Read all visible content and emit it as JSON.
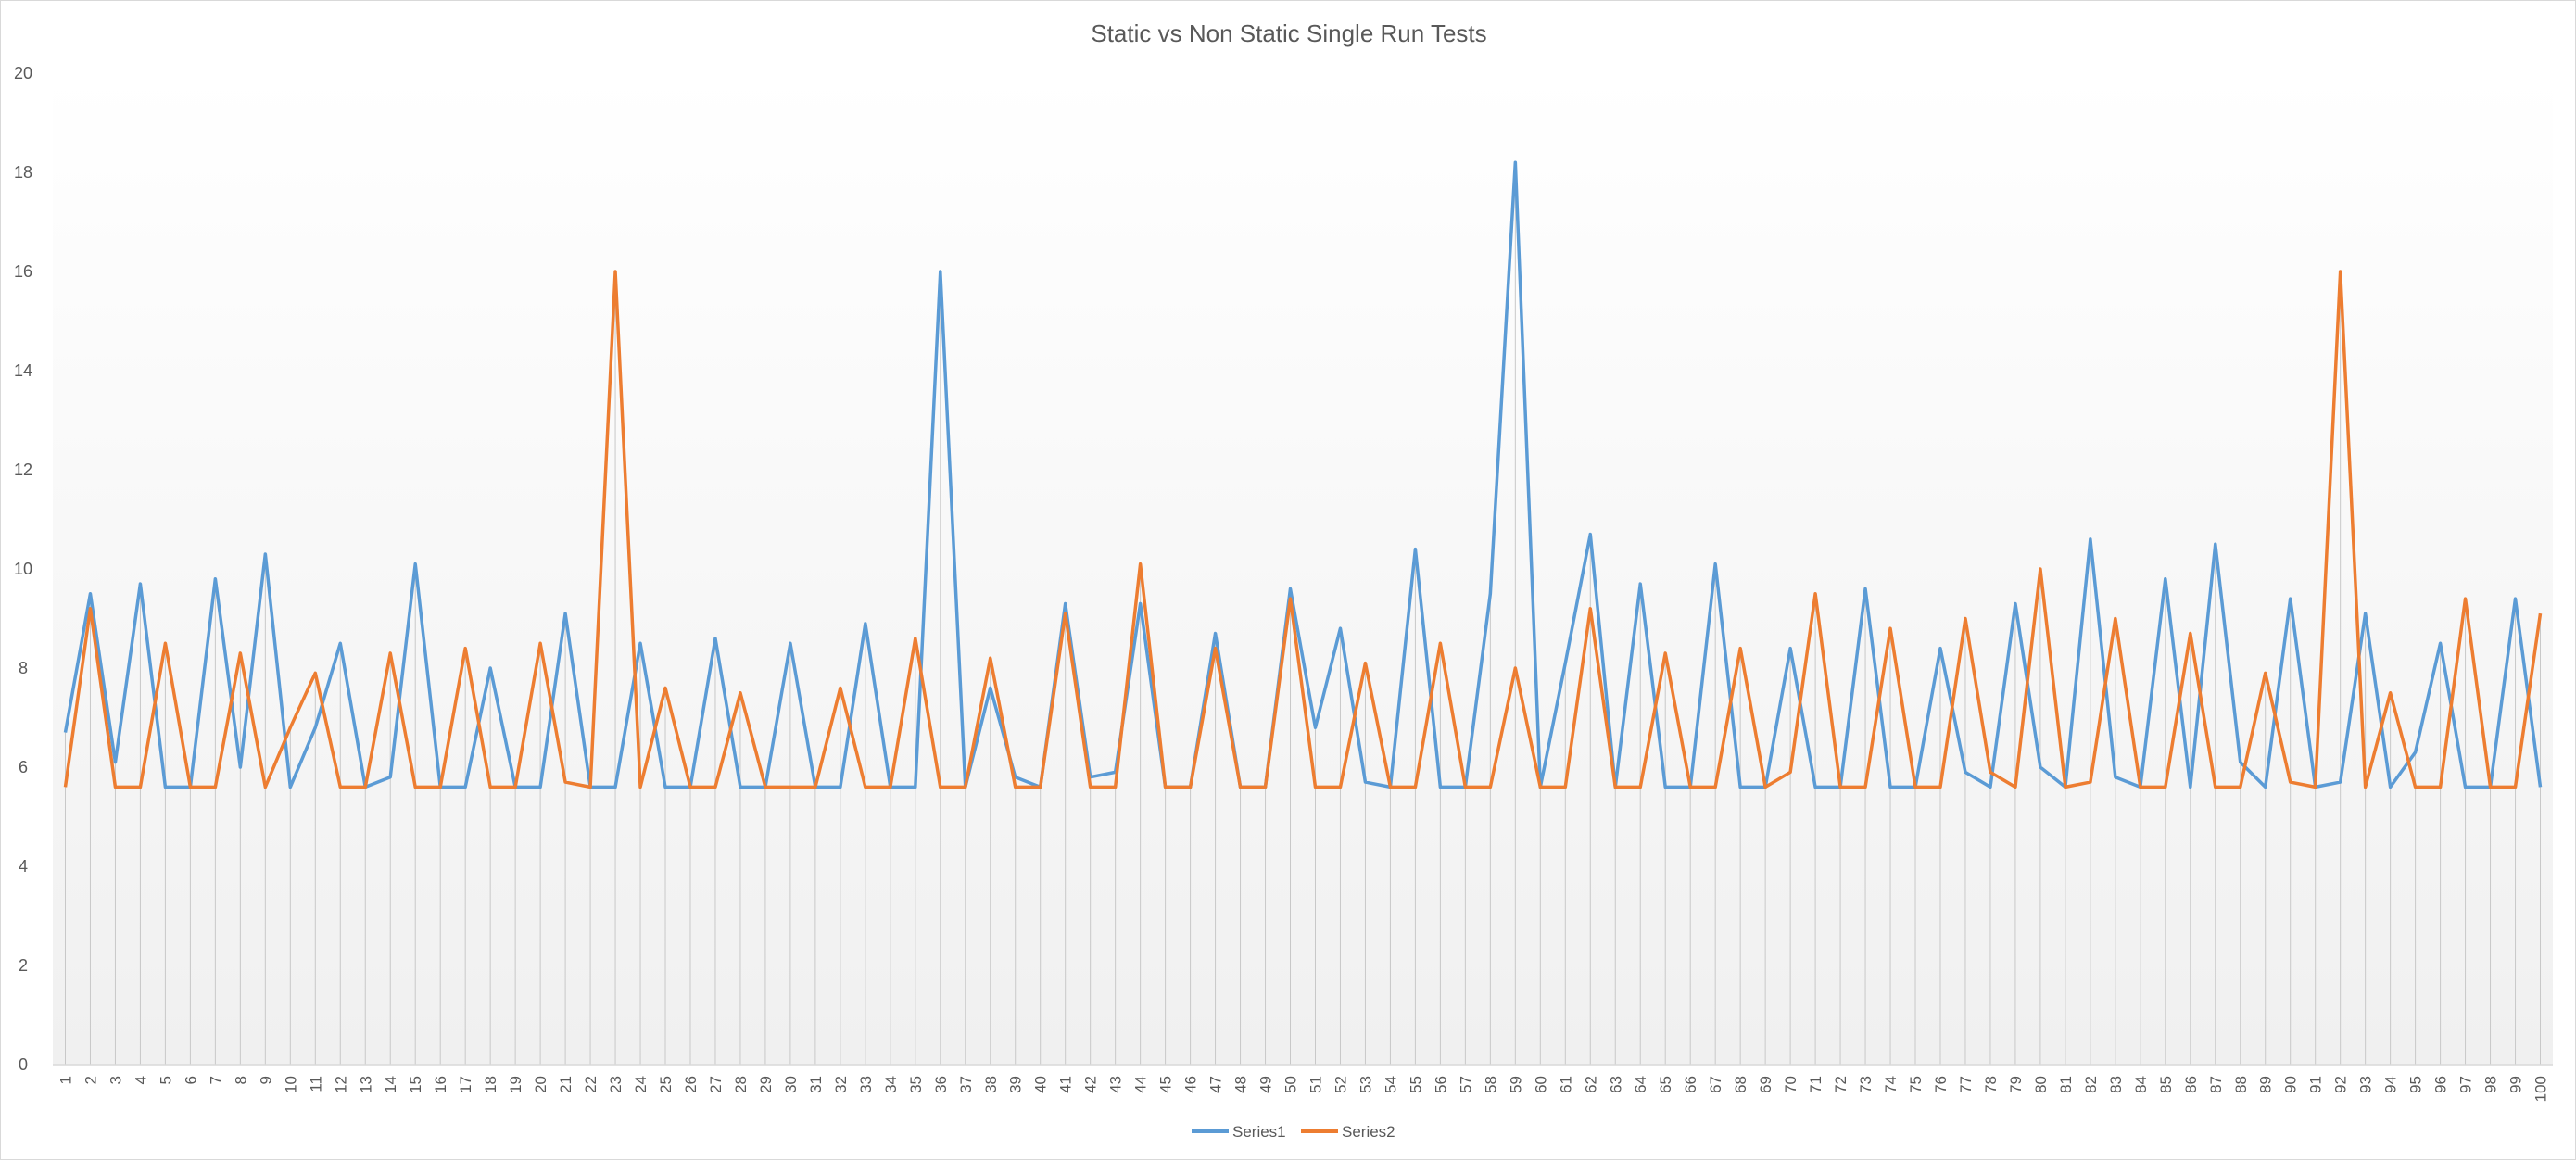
{
  "chart_data": {
    "type": "line",
    "title": "Static vs Non Static Single Run Tests",
    "xlabel": "",
    "ylabel": "",
    "ylim": [
      0,
      20
    ],
    "yticks": [
      0,
      2,
      4,
      6,
      8,
      10,
      12,
      14,
      16,
      18,
      20
    ],
    "grid": false,
    "drop_lines": true,
    "legend_position": "bottom",
    "x": [
      1,
      2,
      3,
      4,
      5,
      6,
      7,
      8,
      9,
      10,
      11,
      12,
      13,
      14,
      15,
      16,
      17,
      18,
      19,
      20,
      21,
      22,
      23,
      24,
      25,
      26,
      27,
      28,
      29,
      30,
      31,
      32,
      33,
      34,
      35,
      36,
      37,
      38,
      39,
      40,
      41,
      42,
      43,
      44,
      45,
      46,
      47,
      48,
      49,
      50,
      51,
      52,
      53,
      54,
      55,
      56,
      57,
      58,
      59,
      60,
      61,
      62,
      63,
      64,
      65,
      66,
      67,
      68,
      69,
      70,
      71,
      72,
      73,
      74,
      75,
      76,
      77,
      78,
      79,
      80,
      81,
      82,
      83,
      84,
      85,
      86,
      87,
      88,
      89,
      90,
      91,
      92,
      93,
      94,
      95,
      96,
      97,
      98,
      99,
      100
    ],
    "series": [
      {
        "name": "Series1",
        "color": "#5b9bd5",
        "values": [
          6.7,
          9.5,
          6.1,
          9.7,
          5.6,
          5.6,
          9.8,
          6.0,
          10.3,
          5.6,
          6.8,
          8.5,
          5.6,
          5.8,
          10.1,
          5.6,
          5.6,
          8.0,
          5.6,
          5.6,
          9.1,
          5.6,
          5.6,
          8.5,
          5.6,
          5.6,
          8.6,
          5.6,
          5.6,
          8.5,
          5.6,
          5.6,
          8.9,
          5.6,
          5.6,
          16.0,
          5.6,
          7.6,
          5.8,
          5.6,
          9.3,
          5.8,
          5.9,
          9.3,
          5.6,
          5.6,
          8.7,
          5.6,
          5.6,
          9.6,
          6.8,
          8.8,
          5.7,
          5.6,
          10.4,
          5.6,
          5.6,
          9.5,
          18.2,
          5.6,
          8.1,
          10.7,
          5.6,
          9.7,
          5.6,
          5.6,
          10.1,
          5.6,
          5.6,
          8.4,
          5.6,
          5.6,
          9.6,
          5.6,
          5.6,
          8.4,
          5.9,
          5.6,
          9.3,
          6.0,
          5.6,
          10.6,
          5.8,
          5.6,
          9.8,
          5.6,
          10.5,
          6.1,
          5.6,
          9.4,
          5.6,
          5.7,
          9.1,
          5.6,
          6.3,
          8.5,
          5.6,
          5.6,
          9.4,
          5.6
        ]
      },
      {
        "name": "Series2",
        "color": "#ed7d31",
        "values": [
          5.6,
          9.2,
          5.6,
          5.6,
          8.5,
          5.6,
          5.6,
          8.3,
          5.6,
          6.8,
          7.9,
          5.6,
          5.6,
          8.3,
          5.6,
          5.6,
          8.4,
          5.6,
          5.6,
          8.5,
          5.7,
          5.6,
          16.0,
          5.6,
          7.6,
          5.6,
          5.6,
          7.5,
          5.6,
          5.6,
          5.6,
          7.6,
          5.6,
          5.6,
          8.6,
          5.6,
          5.6,
          8.2,
          5.6,
          5.6,
          9.1,
          5.6,
          5.6,
          10.1,
          5.6,
          5.6,
          8.4,
          5.6,
          5.6,
          9.4,
          5.6,
          5.6,
          8.1,
          5.6,
          5.6,
          8.5,
          5.6,
          5.6,
          8.0,
          5.6,
          5.6,
          9.2,
          5.6,
          5.6,
          8.3,
          5.6,
          5.6,
          8.4,
          5.6,
          5.9,
          9.5,
          5.6,
          5.6,
          8.8,
          5.6,
          5.6,
          9.0,
          5.9,
          5.6,
          10.0,
          5.6,
          5.7,
          9.0,
          5.6,
          5.6,
          8.7,
          5.6,
          5.6,
          7.9,
          5.7,
          5.6,
          16.0,
          5.6,
          7.5,
          5.6,
          5.6,
          9.4,
          5.6,
          5.6,
          9.1
        ]
      }
    ]
  }
}
